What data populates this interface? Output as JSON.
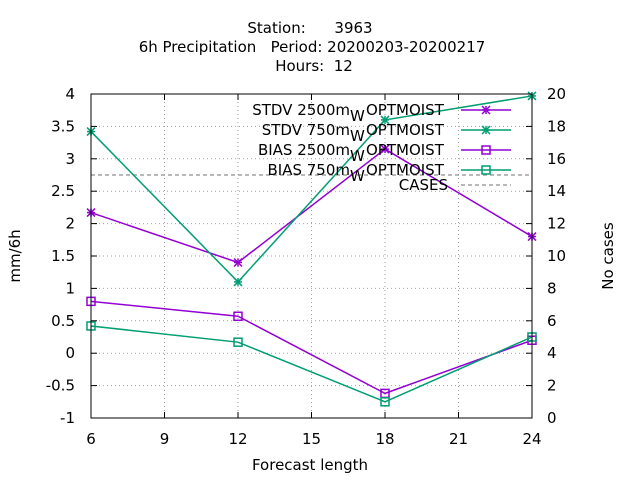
{
  "chart_data": {
    "type": "line",
    "title_lines": [
      "Station:      3963",
      "6h Precipitation   Period: 20200203-20200217",
      "Hours:  12"
    ],
    "xlabel": "Forecast length",
    "ylabel": "mm/6h",
    "y2label": "No cases",
    "x": [
      6,
      12,
      18,
      24
    ],
    "xticks": [
      "6",
      "9",
      "12",
      "15",
      "18",
      "21",
      "24"
    ],
    "xlim": [
      6,
      24
    ],
    "ylim": [
      -1,
      4
    ],
    "yticks": [
      "-1",
      "-0.5",
      "0",
      "0.5",
      "1",
      "1.5",
      "2",
      "2.5",
      "3",
      "3.5",
      "4"
    ],
    "y2lim": [
      0,
      20
    ],
    "y2ticks": [
      "0",
      "2",
      "4",
      "6",
      "8",
      "10",
      "12",
      "14",
      "16",
      "18",
      "20"
    ],
    "grid": true,
    "legend_placement": "top-right",
    "series": [
      {
        "name_main": "STDV 2500m",
        "name_sub": "W",
        "name_tail": "OPTMOIST",
        "color": "#9400d3",
        "marker": "star",
        "values": [
          2.17,
          1.4,
          3.15,
          1.8
        ]
      },
      {
        "name_main": "STDV 750m",
        "name_sub": "W",
        "name_tail": "OPTMOIST",
        "color": "#009e73",
        "marker": "star",
        "values": [
          3.42,
          1.1,
          3.6,
          3.97
        ]
      },
      {
        "name_main": "BIAS 2500m",
        "name_sub": "W",
        "name_tail": "OPTMOIST",
        "color": "#9400d3",
        "marker": "square",
        "values": [
          0.8,
          0.57,
          -0.62,
          0.2
        ]
      },
      {
        "name_main": "BIAS 750m",
        "name_sub": "W",
        "name_tail": "OPTMOIST",
        "color": "#009e73",
        "marker": "square",
        "values": [
          0.42,
          0.17,
          -0.75,
          0.25
        ]
      }
    ],
    "cases": {
      "name": "CASES",
      "color": "#a0a0a0",
      "values": [
        15,
        15,
        15,
        15
      ]
    }
  }
}
